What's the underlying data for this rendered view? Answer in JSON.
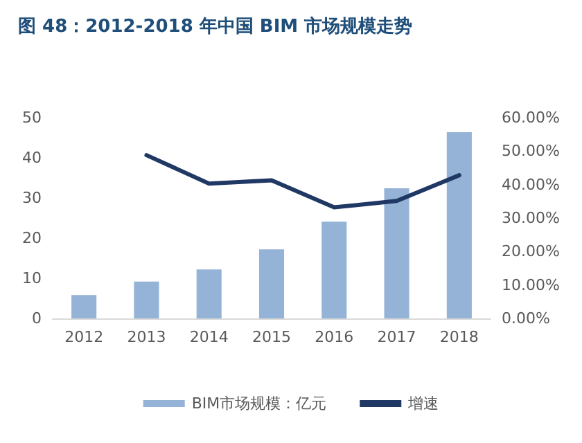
{
  "chart_data": {
    "type": "bar",
    "title": "图 48：2012-2018 年中国 BIM 市场规模走势",
    "categories": [
      "2012",
      "2013",
      "2014",
      "2015",
      "2016",
      "2017",
      "2018"
    ],
    "series": [
      {
        "name": "BIM市场规模：亿元",
        "color": "#95b3d7",
        "values": [
          5.8,
          9.2,
          12.2,
          17.2,
          24.1,
          32.4,
          46.4
        ]
      },
      {
        "name": "增速",
        "type": "line",
        "axis": "y2",
        "color": "#203864",
        "values": [
          null,
          48.8,
          40.3,
          41.3,
          33.2,
          35.1,
          42.8
        ]
      }
    ],
    "ylim": [
      0,
      50
    ],
    "yticks": [
      0,
      10,
      20,
      30,
      40,
      50
    ],
    "y2lim": [
      0,
      60
    ],
    "y2ticks": [
      {
        "value": 0,
        "label": "0.00%"
      },
      {
        "value": 10,
        "label": "10.00%"
      },
      {
        "value": 20,
        "label": "20.00%"
      },
      {
        "value": 30,
        "label": "30.00%"
      },
      {
        "value": 40,
        "label": "40.00%"
      },
      {
        "value": 50,
        "label": "50.00%"
      },
      {
        "value": 60,
        "label": "60.00%"
      }
    ],
    "legend": "bottom",
    "marker": "none"
  }
}
